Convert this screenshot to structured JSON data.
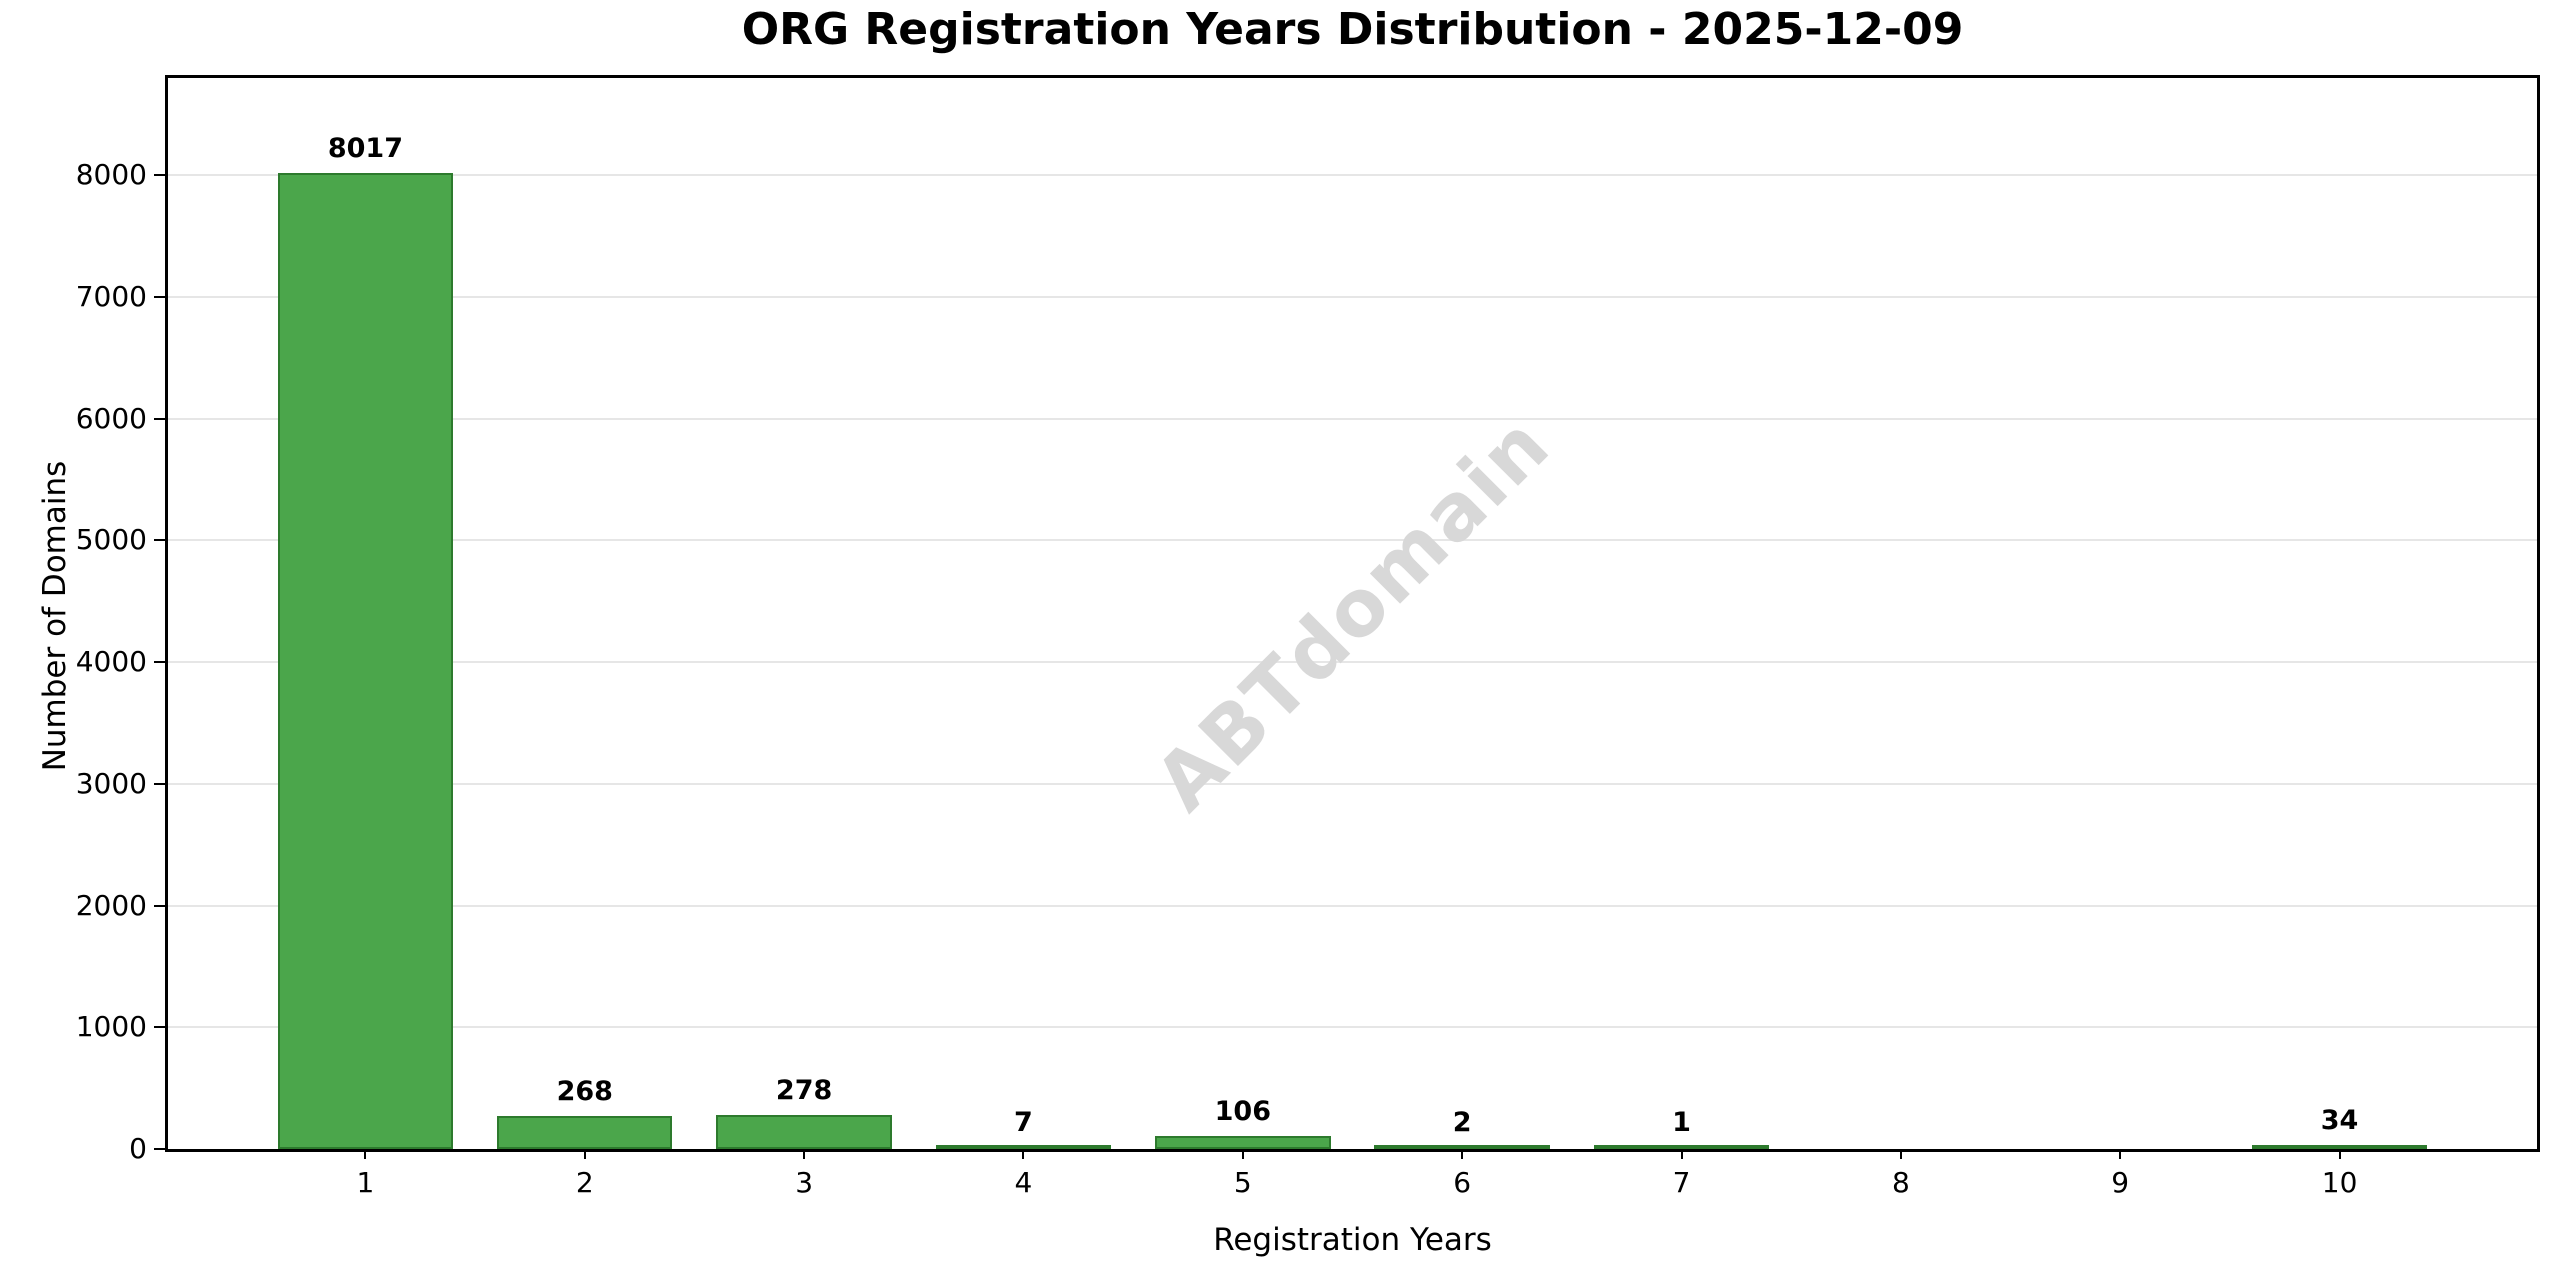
{
  "chart_data": {
    "type": "bar",
    "title": "ORG Registration Years Distribution - 2025-12-09",
    "xlabel": "Registration Years",
    "ylabel": "Number of Domains",
    "categories": [
      "1",
      "2",
      "3",
      "4",
      "5",
      "6",
      "7",
      "8",
      "9",
      "10"
    ],
    "values": [
      8017,
      268,
      278,
      7,
      106,
      2,
      1,
      0,
      0,
      34
    ],
    "bar_labels": [
      "8017",
      "268",
      "278",
      "7",
      "106",
      "2",
      "1",
      "",
      "",
      "34"
    ],
    "yticks": [
      0,
      1000,
      2000,
      3000,
      4000,
      5000,
      6000,
      7000,
      8000
    ],
    "ylim": [
      0,
      8800
    ],
    "xlim": [
      0.1,
      10.9
    ],
    "bar_width_data_units": 0.8,
    "grid": "horizontal",
    "legend_position": "none",
    "watermark": "ABTdomain",
    "colors": {
      "bar_fill": "#4ba64b",
      "bar_edge": "#2d7a2d",
      "grid_line": "#e6e6e6",
      "watermark": "#d8d8d8",
      "text": "#000000",
      "background": "#ffffff"
    }
  }
}
